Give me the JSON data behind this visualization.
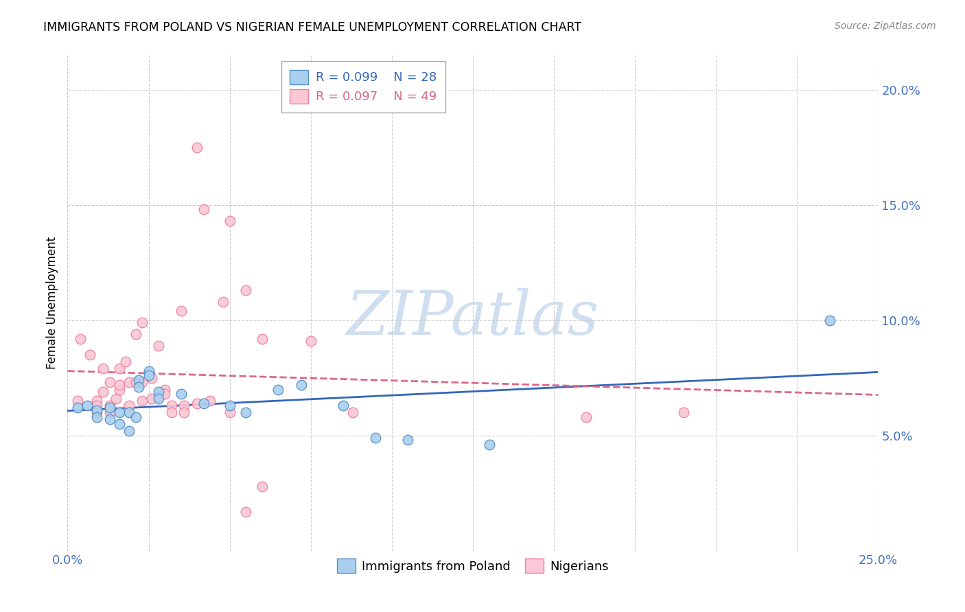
{
  "title": "IMMIGRANTS FROM POLAND VS NIGERIAN FEMALE UNEMPLOYMENT CORRELATION CHART",
  "source": "Source: ZipAtlas.com",
  "ylabel": "Female Unemployment",
  "xlim": [
    0.0,
    0.25
  ],
  "ylim": [
    0.0,
    0.215
  ],
  "yticks": [
    0.05,
    0.1,
    0.15,
    0.2
  ],
  "ytick_labels": [
    "5.0%",
    "10.0%",
    "15.0%",
    "20.0%"
  ],
  "xticks": [
    0.0,
    0.025,
    0.05,
    0.075,
    0.1,
    0.125,
    0.15,
    0.175,
    0.2,
    0.225,
    0.25
  ],
  "xtick_labels": [
    "0.0%",
    "",
    "",
    "",
    "",
    "",
    "",
    "",
    "",
    "",
    "25.0%"
  ],
  "legend_blue_label": "Immigrants from Poland",
  "legend_pink_label": "Nigerians",
  "legend_r_blue": "R = 0.099",
  "legend_n_blue": "N = 28",
  "legend_r_pink": "R = 0.097",
  "legend_n_pink": "N = 49",
  "blue_fill": "#aacfee",
  "pink_fill": "#f9c8d4",
  "blue_edge": "#5590c8",
  "pink_edge": "#f080a0",
  "blue_line": "#3366bb",
  "pink_line": "#dd6688",
  "axis_label_color": "#4472c4",
  "watermark_color": "#d0dff0",
  "watermark_text": "ZIPatlas",
  "poland_x": [
    0.003,
    0.006,
    0.009,
    0.009,
    0.013,
    0.013,
    0.016,
    0.016,
    0.019,
    0.019,
    0.021,
    0.022,
    0.022,
    0.025,
    0.025,
    0.028,
    0.028,
    0.035,
    0.042,
    0.05,
    0.055,
    0.065,
    0.072,
    0.085,
    0.095,
    0.105,
    0.13,
    0.235
  ],
  "poland_y": [
    0.062,
    0.063,
    0.061,
    0.058,
    0.062,
    0.057,
    0.06,
    0.055,
    0.06,
    0.052,
    0.058,
    0.074,
    0.071,
    0.078,
    0.076,
    0.069,
    0.066,
    0.068,
    0.064,
    0.063,
    0.06,
    0.07,
    0.072,
    0.063,
    0.049,
    0.048,
    0.046,
    0.1
  ],
  "nigeria_x": [
    0.003,
    0.004,
    0.007,
    0.009,
    0.009,
    0.009,
    0.011,
    0.011,
    0.013,
    0.013,
    0.013,
    0.015,
    0.016,
    0.016,
    0.016,
    0.018,
    0.019,
    0.019,
    0.021,
    0.021,
    0.023,
    0.023,
    0.023,
    0.026,
    0.026,
    0.028,
    0.028,
    0.03,
    0.03,
    0.032,
    0.032,
    0.035,
    0.036,
    0.036,
    0.04,
    0.042,
    0.044,
    0.05,
    0.055,
    0.06,
    0.075,
    0.088,
    0.04,
    0.16,
    0.19,
    0.048,
    0.05,
    0.055,
    0.06
  ],
  "nigeria_y": [
    0.065,
    0.092,
    0.085,
    0.065,
    0.063,
    0.06,
    0.069,
    0.079,
    0.06,
    0.063,
    0.073,
    0.066,
    0.07,
    0.072,
    0.079,
    0.082,
    0.063,
    0.073,
    0.073,
    0.094,
    0.065,
    0.073,
    0.099,
    0.066,
    0.075,
    0.067,
    0.089,
    0.07,
    0.068,
    0.063,
    0.06,
    0.104,
    0.063,
    0.06,
    0.064,
    0.148,
    0.065,
    0.143,
    0.113,
    0.092,
    0.091,
    0.06,
    0.175,
    0.058,
    0.06,
    0.108,
    0.06,
    0.017,
    0.028
  ]
}
